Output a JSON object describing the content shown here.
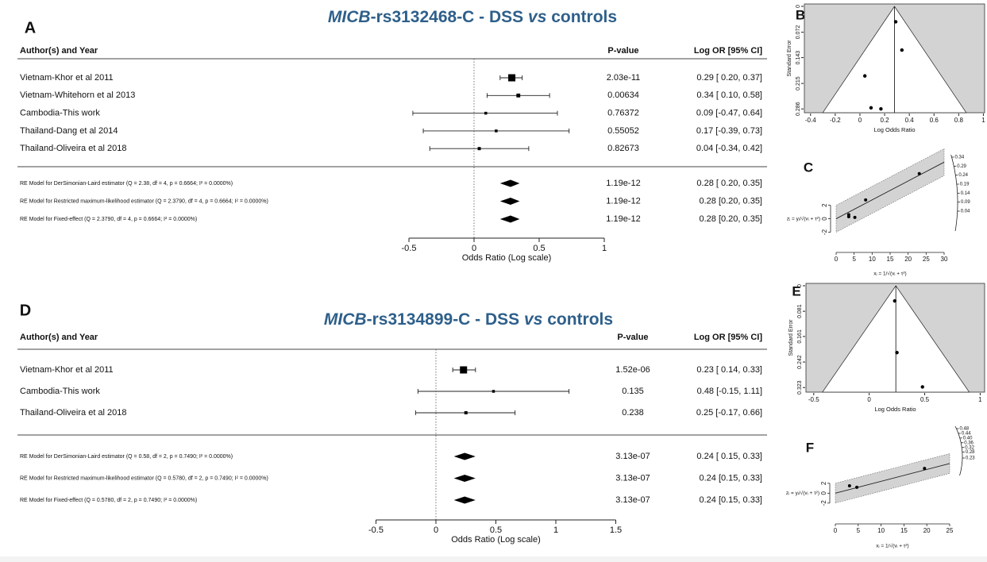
{
  "chart_data": [
    {
      "type": "forest",
      "panel": "A",
      "title": [
        "MICB",
        "-rs3132468-C - DSS ",
        "vs",
        " controls"
      ],
      "columns": [
        "Author(s) and Year",
        "P-value",
        "Log OR [95% CI]"
      ],
      "categories": [
        "Vietnam-Khor et al 2011",
        "Vietnam-Whitehorn et al 2013",
        "Cambodia-This work",
        "Thailand-Dang et al 2014",
        "Thailand-Oliveira et al 2018"
      ],
      "values": [
        0.29,
        0.34,
        0.09,
        0.17,
        0.04
      ],
      "ci_low": [
        0.2,
        0.1,
        -0.47,
        -0.39,
        -0.34
      ],
      "ci_high": [
        0.37,
        0.58,
        0.64,
        0.73,
        0.42
      ],
      "p_values": [
        "2.03e-11",
        "0.00634",
        "0.76372",
        "0.55052",
        "0.82673"
      ],
      "value_labels": [
        "0.29 [ 0.20, 0.37]",
        "0.34 [ 0.10, 0.58]",
        "0.09 [-0.47, 0.64]",
        "0.17 [-0.39, 0.73]",
        "0.04 [-0.34, 0.42]"
      ],
      "models": {
        "categories": [
          "RE Model for DerSimonian-Laird estimator (Q = 2.38, df = 4, p = 0.6664; I² = 0.0000%)",
          "RE Model for Restricted maximum-likelihood estimator (Q = 2.3790, df = 4, p = 0.6664; I² = 0.0000%)",
          "RE Model for Fixed-effect (Q = 2.3790, df = 4, p = 0.6664; I² = 0.0000%)"
        ],
        "values": [
          0.28,
          0.28,
          0.28
        ],
        "ci_low": [
          0.2,
          0.2,
          0.2
        ],
        "ci_high": [
          0.35,
          0.35,
          0.35
        ],
        "p_values": [
          "1.19e-12",
          "1.19e-12",
          "1.19e-12"
        ],
        "value_labels": [
          "0.28 [ 0.20, 0.35]",
          "0.28 [0.20, 0.35]",
          "0.28 [0.20, 0.35]"
        ]
      },
      "xlim": [
        -0.5,
        1
      ],
      "xticks": [
        -0.5,
        0,
        0.5,
        1
      ],
      "xlabel": "Odds Ratio (Log scale)"
    },
    {
      "type": "funnel",
      "panel": "B",
      "estimate": 0.28,
      "x": [
        0.29,
        0.34,
        0.09,
        0.17,
        0.04
      ],
      "values": [
        0.043,
        0.122,
        0.283,
        0.286,
        0.194
      ],
      "xlim": [
        -0.45,
        1.01
      ],
      "xticks": [
        -0.4,
        -0.2,
        0,
        0.2,
        0.4,
        0.6,
        0.8,
        1
      ],
      "ylim": [
        0,
        0.29
      ],
      "yticks": [
        0,
        0.072,
        0.143,
        0.215,
        0.286
      ],
      "xlabel": "Log Odds Ratio",
      "ylabel": "Standard Error"
    },
    {
      "type": "radial",
      "panel": "C",
      "slope": 0.28,
      "x": [
        23.1,
        8.2,
        3.5,
        3.5,
        5.2
      ],
      "values": [
        6.7,
        2.8,
        0.3,
        0.6,
        0.2
      ],
      "xlim": [
        0,
        30
      ],
      "xticks": [
        0,
        5,
        10,
        15,
        20,
        25,
        30
      ],
      "ylim": [
        -3,
        9.5
      ],
      "yticks": [
        -2,
        0,
        2
      ],
      "arc_ticks": [
        0.34,
        0.29,
        0.24,
        0.19,
        0.14,
        0.09,
        0.04
      ],
      "xlabel": "xᵢ = 1/√(vᵢ + τ²)",
      "ylabel": "zᵢ = yᵢ/√(vᵢ + τ²)"
    },
    {
      "type": "forest",
      "panel": "D",
      "title": [
        "MICB",
        "-rs3134899-C - DSS ",
        "vs",
        " controls"
      ],
      "columns": [
        "Author(s) and Year",
        "P-value",
        "Log OR [95% CI]"
      ],
      "categories": [
        "Vietnam-Khor et al 2011",
        "Cambodia-This work",
        "Thailand-Oliveira et al 2018"
      ],
      "values": [
        0.23,
        0.48,
        0.25
      ],
      "ci_low": [
        0.14,
        -0.15,
        -0.17
      ],
      "ci_high": [
        0.33,
        1.11,
        0.66
      ],
      "p_values": [
        "1.52e-06",
        "0.135",
        "0.238"
      ],
      "value_labels": [
        "0.23 [ 0.14, 0.33]",
        "0.48 [-0.15, 1.11]",
        "0.25 [-0.17, 0.66]"
      ],
      "models": {
        "categories": [
          "RE Model for DerSimonian-Laird estimator (Q = 0.58, df = 2, p = 0.7490; I² = 0.0000%)",
          "RE Model for Restricted maximum-likelihood estimator (Q = 0.5780, df = 2, p = 0.7490; I² = 0.0000%)",
          "RE Model for Fixed-effect (Q = 0.5780, df = 2, p = 0.7490; I² = 0.0000%)"
        ],
        "values": [
          0.24,
          0.24,
          0.24
        ],
        "ci_low": [
          0.15,
          0.15,
          0.15
        ],
        "ci_high": [
          0.33,
          0.33,
          0.33
        ],
        "p_values": [
          "3.13e-07",
          "3.13e-07",
          "3.13e-07"
        ],
        "value_labels": [
          "0.24 [ 0.15, 0.33]",
          "0.24 [0.15, 0.33]",
          "0.24 [0.15, 0.33]"
        ]
      },
      "xlim": [
        -0.5,
        1.5
      ],
      "xticks": [
        -0.5,
        0,
        0.5,
        1,
        1.5
      ],
      "xlabel": "Odds Ratio (Log scale)"
    },
    {
      "type": "funnel",
      "panel": "E",
      "estimate": 0.24,
      "x": [
        0.23,
        0.48,
        0.25
      ],
      "values": [
        0.048,
        0.321,
        0.212
      ],
      "xlim": [
        -0.57,
        1.04
      ],
      "xticks": [
        -0.5,
        0,
        0.5,
        1
      ],
      "ylim": [
        0,
        0.33
      ],
      "yticks": [
        0,
        0.081,
        0.161,
        0.242,
        0.323
      ],
      "xlabel": "Log Odds Ratio",
      "ylabel": "Standard Error"
    },
    {
      "type": "radial",
      "panel": "F",
      "slope": 0.24,
      "x": [
        19.5,
        3.1,
        4.7
      ],
      "values": [
        5.0,
        1.5,
        1.2
      ],
      "xlim": [
        0,
        25
      ],
      "xticks": [
        0,
        5,
        10,
        15,
        20,
        25
      ],
      "ylim": [
        -3,
        10
      ],
      "yticks": [
        -2,
        0,
        2
      ],
      "arc_ticks": [
        0.48,
        0.44,
        {
          "value": 0.4,
          "label": "0.40"
        },
        0.36,
        0.32,
        0.28,
        0.23
      ],
      "xlabel": "xᵢ = 1/√(vᵢ + τ²)",
      "ylabel": "zᵢ = yᵢ/√(vᵢ + τ²)"
    }
  ]
}
